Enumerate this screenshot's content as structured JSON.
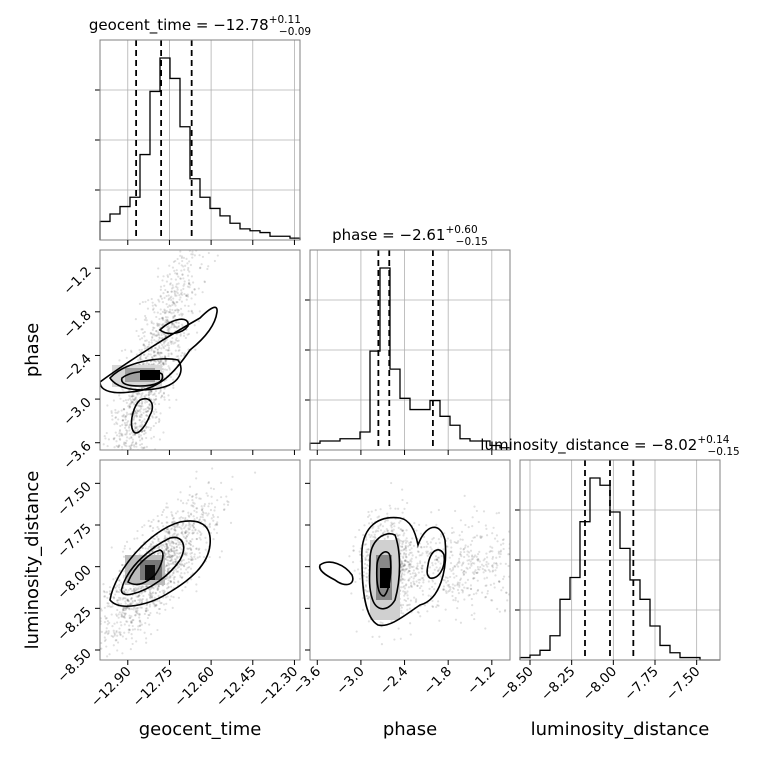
{
  "chart_data": {
    "type": "corner",
    "parameters": [
      "geocent_time",
      "phase",
      "luminosity_distance"
    ],
    "axis_labels": [
      "geocent_time",
      "phase",
      "luminosity_distance"
    ],
    "titles": [
      {
        "param": "geocent_time",
        "median": "−12.78",
        "plus": "+0.11",
        "minus": "−0.09",
        "prefix": "geocent_time = "
      },
      {
        "param": "phase",
        "median": "−2.61",
        "plus": "+0.60",
        "minus": "−0.15",
        "prefix": "phase = "
      },
      {
        "param": "luminosity_distance",
        "median": "−8.02",
        "plus": "+0.14",
        "minus": "−0.15",
        "prefix": "luminosity_distance = "
      }
    ],
    "ranges": {
      "geocent_time": [
        -13.0,
        -12.28
      ],
      "phase": [
        -3.7,
        -0.95
      ],
      "luminosity_distance": [
        -8.56,
        -7.36
      ]
    },
    "ticks": {
      "geocent_time": {
        "values": [
          -12.9,
          -12.75,
          -12.6,
          -12.45,
          -12.3
        ],
        "labels": [
          "−12.90",
          "−12.75",
          "−12.60",
          "−12.45",
          "−12.30"
        ]
      },
      "phase": {
        "values": [
          -3.6,
          -3.0,
          -2.4,
          -1.8,
          -1.2
        ],
        "labels": [
          "−3.6",
          "−3.0",
          "−2.4",
          "−1.8",
          "−1.2"
        ]
      },
      "luminosity_distance": {
        "values": [
          -8.5,
          -8.25,
          -8.0,
          -7.75,
          -7.5
        ],
        "labels": [
          "−8.50",
          "−8.25",
          "−8.00",
          "−7.75",
          "−7.50"
        ]
      }
    },
    "quantile_lines": {
      "geocent_time": [
        -12.87,
        -12.78,
        -12.67
      ],
      "phase": [
        -2.76,
        -2.61,
        -2.01
      ],
      "luminosity_distance": [
        -8.17,
        -8.02,
        -7.88
      ]
    },
    "histograms": {
      "geocent_time": {
        "edges_range": [
          -13.0,
          -12.28
        ],
        "counts": [
          10,
          14,
          18,
          23,
          46,
          80,
          98,
          87,
          61,
          33,
          23,
          17,
          13,
          9,
          6,
          5,
          4,
          2,
          2,
          1
        ]
      },
      "phase": {
        "edges_range": [
          -3.7,
          -0.95
        ],
        "counts": [
          3,
          4,
          4,
          5,
          5,
          8,
          44,
          81,
          36,
          23,
          18,
          18,
          22,
          15,
          11,
          5,
          4,
          4,
          2,
          1
        ]
      },
      "luminosity_distance": {
        "edges_range": [
          -8.56,
          -7.36
        ],
        "counts": [
          1,
          2,
          4,
          10,
          25,
          34,
          57,
          75,
          72,
          61,
          46,
          33,
          25,
          14,
          6,
          3,
          1,
          1,
          0,
          0
        ]
      }
    },
    "grid": true,
    "color": "#000000"
  }
}
